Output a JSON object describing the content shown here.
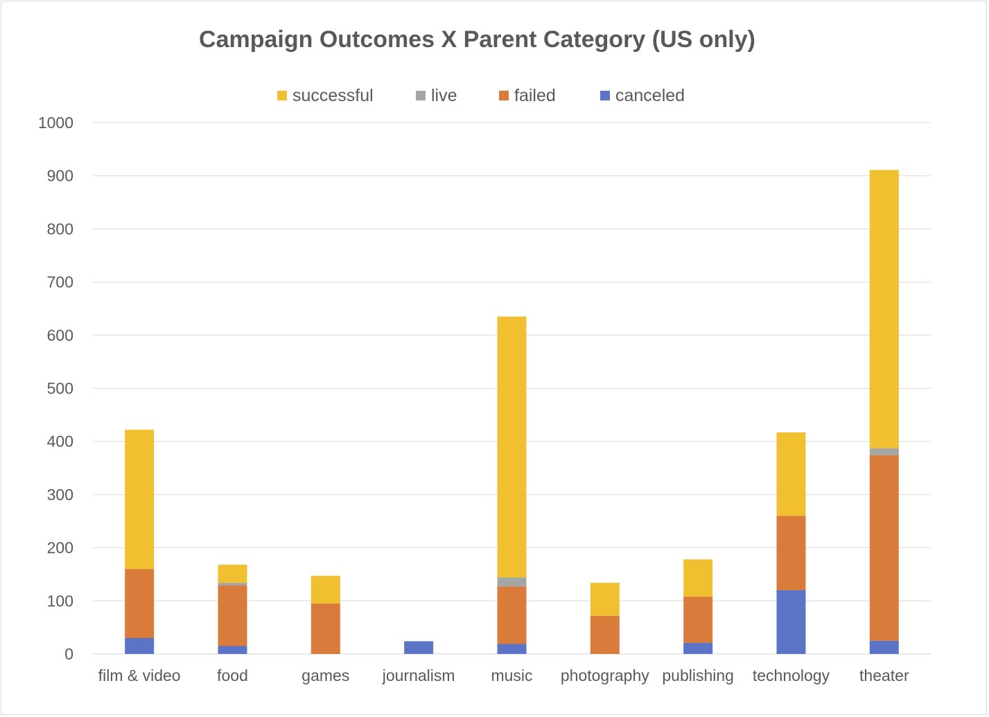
{
  "chart_data": {
    "type": "bar",
    "stacked": true,
    "title": "Campaign Outcomes X Parent Category (US only)",
    "xlabel": "",
    "ylabel": "",
    "ylim": [
      0,
      1000
    ],
    "yticks": [
      0,
      100,
      200,
      300,
      400,
      500,
      600,
      700,
      800,
      900,
      1000
    ],
    "grid": true,
    "legend_position": "top",
    "categories": [
      "film & video",
      "food",
      "games",
      "journalism",
      "music",
      "photography",
      "publishing",
      "technology",
      "theater"
    ],
    "series": [
      {
        "name": "canceled",
        "color": "#5b74c6",
        "values": [
          30,
          15,
          0,
          24,
          19,
          0,
          21,
          120,
          25
        ]
      },
      {
        "name": "failed",
        "color": "#d97c3b",
        "values": [
          130,
          114,
          95,
          0,
          108,
          72,
          87,
          140,
          349
        ]
      },
      {
        "name": "live",
        "color": "#a5a5a5",
        "values": [
          0,
          5,
          0,
          0,
          17,
          0,
          0,
          0,
          13
        ]
      },
      {
        "name": "successful",
        "color": "#f0c030",
        "values": [
          262,
          34,
          52,
          0,
          491,
          62,
          70,
          157,
          524
        ]
      }
    ],
    "legend_order": [
      "successful",
      "live",
      "failed",
      "canceled"
    ]
  }
}
